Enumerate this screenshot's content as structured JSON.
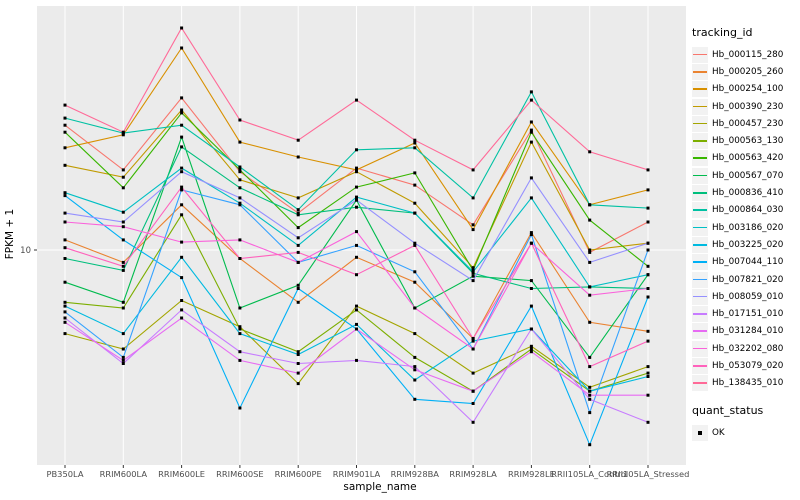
{
  "figure": {
    "xlabel": "sample_name",
    "ylabel": "FPKM + 1",
    "y_tick_label": "10"
  },
  "legend": {
    "tracking_title": "tracking_id",
    "quant_title": "quant_status",
    "quant_ok_label": "OK"
  },
  "style": {
    "panel_bg": "#EBEBEB",
    "grid_color": "#FFFFFF",
    "tick_color": "#333333",
    "tick_label_color": "#4D4D4D",
    "point_color": "#000000",
    "legend_key_bg": "#F2F2F2"
  },
  "chart_data": {
    "type": "line",
    "title": "",
    "xlabel": "sample_name",
    "ylabel": "FPKM + 1",
    "yscale": "log10",
    "y_ticks": [
      10
    ],
    "ylim": [
      1.6,
      80
    ],
    "grid": "on",
    "legend_position": "right",
    "point_marker": "black square (quant_status OK)",
    "x_categories": [
      "PB350LA",
      "RRIM600LA",
      "RRIM600LE",
      "RRIM600SE",
      "RRIM600PE",
      "RRIM901LA",
      "RRIM928BA",
      "RRIM928LA",
      "RRIM928LE",
      "RRII105LA_Control",
      "RRII105LA_Stressed"
    ],
    "series": [
      {
        "name": "Hb_000115_280",
        "color": "#F8766D",
        "values": [
          29.0,
          19.8,
          36.6,
          19.5,
          13.7,
          20.1,
          17.4,
          12.4,
          27.8,
          9.8,
          12.7
        ]
      },
      {
        "name": "Hb_000205_260",
        "color": "#EA8331",
        "values": [
          10.9,
          9.0,
          14.7,
          9.3,
          6.4,
          9.4,
          7.6,
          4.7,
          11.6,
          5.4,
          5.0
        ]
      },
      {
        "name": "Hb_000254_100",
        "color": "#D89000",
        "values": [
          23.9,
          26.7,
          56.0,
          25.1,
          22.1,
          19.8,
          24.9,
          11.9,
          29.8,
          14.7,
          16.7
        ]
      },
      {
        "name": "Hb_000390_230",
        "color": "#C09B00",
        "values": [
          20.6,
          18.6,
          33.0,
          18.2,
          15.6,
          19.5,
          14.9,
          8.6,
          25.1,
          10.0,
          10.6
        ]
      },
      {
        "name": "Hb_000457_230",
        "color": "#A3A500",
        "values": [
          4.9,
          4.3,
          6.5,
          5.2,
          3.2,
          6.2,
          4.9,
          3.5,
          4.4,
          3.1,
          3.7
        ]
      },
      {
        "name": "Hb_000563_130",
        "color": "#7CAE00",
        "values": [
          6.4,
          6.1,
          13.5,
          5.1,
          4.2,
          6.0,
          4.0,
          3.0,
          4.3,
          3.0,
          3.5
        ]
      },
      {
        "name": "Hb_000563_420",
        "color": "#39B600",
        "values": [
          27.3,
          17.0,
          32.2,
          19.8,
          12.1,
          17.1,
          19.3,
          8.4,
          27.3,
          12.9,
          8.7
        ]
      },
      {
        "name": "Hb_000567_070",
        "color": "#00BB4E",
        "values": [
          7.6,
          6.4,
          26.2,
          6.1,
          7.4,
          15.3,
          6.1,
          8.0,
          7.7,
          4.0,
          8.1
        ]
      },
      {
        "name": "Hb_000836_410",
        "color": "#00BF7D",
        "values": [
          9.3,
          8.4,
          24.1,
          17.0,
          13.5,
          14.4,
          13.7,
          8.2,
          7.2,
          7.3,
          7.2
        ]
      },
      {
        "name": "Hb_000864_030",
        "color": "#00C1A3",
        "values": [
          30.8,
          27.1,
          29.0,
          20.3,
          14.1,
          23.5,
          23.9,
          15.6,
          38.5,
          14.7,
          14.3
        ]
      },
      {
        "name": "Hb_003186_020",
        "color": "#00BFC4",
        "values": [
          16.3,
          13.8,
          20.1,
          14.9,
          10.4,
          15.7,
          13.7,
          8.3,
          15.6,
          7.3,
          8.1
        ]
      },
      {
        "name": "Hb_003225_020",
        "color": "#00BAE0",
        "values": [
          6.2,
          4.9,
          9.4,
          4.9,
          4.1,
          5.3,
          3.3,
          4.6,
          5.1,
          3.0,
          3.4
        ]
      },
      {
        "name": "Hb_007044_110",
        "color": "#00B0F6",
        "values": [
          15.9,
          10.9,
          7.9,
          2.6,
          7.2,
          5.1,
          2.8,
          2.7,
          6.2,
          1.9,
          6.7
        ]
      },
      {
        "name": "Hb_007821_020",
        "color": "#35A2FF",
        "values": [
          5.9,
          4.0,
          16.7,
          14.7,
          9.0,
          10.4,
          8.3,
          4.3,
          11.4,
          2.5,
          10.0
        ]
      },
      {
        "name": "Hb_008059_010",
        "color": "#9590FF",
        "values": [
          13.7,
          12.7,
          19.5,
          15.6,
          11.1,
          15.3,
          10.6,
          7.7,
          18.5,
          9.0,
          10.6
        ]
      },
      {
        "name": "Hb_017151_010",
        "color": "#C77CFF",
        "values": [
          5.6,
          3.8,
          6.0,
          4.2,
          3.8,
          3.9,
          3.7,
          2.3,
          5.1,
          2.8,
          2.3
        ]
      },
      {
        "name": "Hb_031284_010",
        "color": "#E76BF3",
        "values": [
          5.4,
          3.9,
          5.6,
          3.9,
          3.5,
          5.1,
          3.6,
          3.0,
          4.2,
          2.9,
          2.9
        ]
      },
      {
        "name": "Hb_032202_080",
        "color": "#FA62DB",
        "values": [
          12.7,
          12.2,
          10.7,
          10.9,
          9.0,
          11.7,
          6.1,
          4.3,
          10.6,
          6.8,
          7.2
        ]
      },
      {
        "name": "Hb_053079_020",
        "color": "#FF62BC",
        "values": [
          10.2,
          8.7,
          17.1,
          9.3,
          9.8,
          8.1,
          10.4,
          4.7,
          10.6,
          3.7,
          4.6
        ]
      },
      {
        "name": "Hb_138435_010",
        "color": "#FF6A98",
        "values": [
          34.4,
          27.3,
          66.4,
          30.3,
          25.5,
          35.9,
          25.5,
          19.8,
          35.9,
          23.1,
          19.8
        ]
      }
    ]
  }
}
